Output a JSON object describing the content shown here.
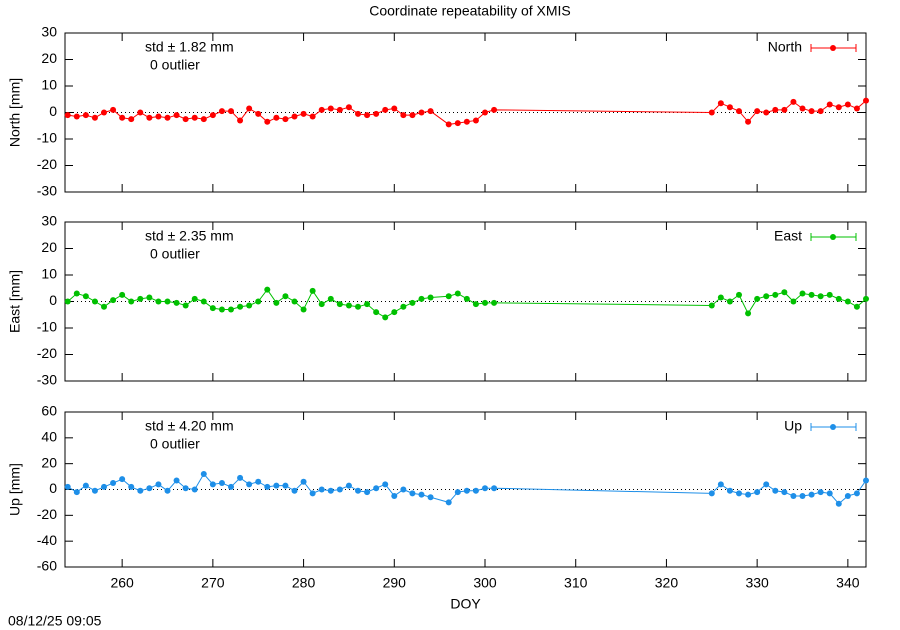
{
  "title": "Coordinate repeatability of XMIS",
  "timestamp": "08/12/25 09:05",
  "chart_data": [
    {
      "type": "line",
      "ylabel": "North [mm]",
      "annotations": [
        "std ± 1.82 mm",
        "0 outlier"
      ],
      "x": [
        254,
        255,
        256,
        257,
        258,
        259,
        260,
        261,
        262,
        263,
        264,
        265,
        266,
        267,
        268,
        269,
        270,
        271,
        272,
        273,
        274,
        275,
        276,
        277,
        278,
        279,
        280,
        281,
        282,
        283,
        284,
        285,
        286,
        287,
        288,
        289,
        290,
        291,
        292,
        293,
        294,
        296,
        297,
        298,
        299,
        300,
        301,
        325,
        326,
        327,
        328,
        329,
        330,
        331,
        332,
        333,
        334,
        335,
        336,
        337,
        338,
        339,
        340,
        341,
        342
      ],
      "series": [
        {
          "name": "North",
          "color": "#ff0000",
          "values": [
            -1,
            -1.5,
            -1,
            -2,
            0,
            1,
            -2,
            -2.5,
            0,
            -2,
            -1.5,
            -2,
            -1,
            -2.5,
            -2,
            -2.5,
            -1,
            0.5,
            0.5,
            -3,
            1.5,
            -0.5,
            -3.5,
            -2,
            -2.5,
            -1.5,
            -0.5,
            -1.5,
            1,
            1.5,
            1,
            2,
            -0.5,
            -1,
            -0.5,
            1,
            1.5,
            -1,
            -1,
            0,
            0.5,
            -4.5,
            -4,
            -3.5,
            -3,
            0,
            1,
            0,
            3.5,
            2,
            0.5,
            -3.5,
            0.5,
            0,
            1,
            1,
            4,
            1.5,
            0.5,
            0.5,
            3,
            2,
            3,
            1.5,
            4.5
          ]
        }
      ],
      "xlim": [
        253.7,
        342
      ],
      "xticks": [
        260,
        270,
        280,
        290,
        300,
        310,
        320,
        330,
        340
      ],
      "ylim": [
        -30,
        30
      ],
      "yticks": [
        -30,
        -20,
        -10,
        0,
        10,
        20,
        30
      ],
      "zeroline": true
    },
    {
      "type": "line",
      "ylabel": "East [mm]",
      "annotations": [
        "std ± 2.35 mm",
        "0 outlier"
      ],
      "x": [
        254,
        255,
        256,
        257,
        258,
        259,
        260,
        261,
        262,
        263,
        264,
        265,
        266,
        267,
        268,
        269,
        270,
        271,
        272,
        273,
        274,
        275,
        276,
        277,
        278,
        279,
        280,
        281,
        282,
        283,
        284,
        285,
        286,
        287,
        288,
        289,
        290,
        291,
        292,
        293,
        294,
        296,
        297,
        298,
        299,
        300,
        301,
        325,
        326,
        327,
        328,
        329,
        330,
        331,
        332,
        333,
        334,
        335,
        336,
        337,
        338,
        339,
        340,
        341,
        342
      ],
      "series": [
        {
          "name": "East",
          "color": "#00c000",
          "values": [
            0,
            3,
            2,
            0,
            -2,
            0.5,
            2.5,
            0,
            1,
            1.5,
            0,
            0,
            -0.5,
            -1.5,
            1,
            0,
            -2.5,
            -3,
            -3,
            -2,
            -1.5,
            0,
            4.5,
            -0.5,
            2,
            0,
            -3,
            4,
            -1,
            1,
            -1,
            -1.5,
            -2,
            -1,
            -4,
            -6,
            -4,
            -2,
            -0.5,
            1,
            1.5,
            2,
            3,
            1,
            -1,
            -0.5,
            -0.5,
            -1.5,
            1.5,
            0,
            2.5,
            -4.5,
            1,
            2,
            2.5,
            3.5,
            0,
            3,
            2.5,
            2,
            2.5,
            1,
            0,
            -2,
            1
          ]
        }
      ],
      "xlim": [
        253.7,
        342
      ],
      "xticks": [
        260,
        270,
        280,
        290,
        300,
        310,
        320,
        330,
        340
      ],
      "ylim": [
        -30,
        30
      ],
      "yticks": [
        -30,
        -20,
        -10,
        0,
        10,
        20,
        30
      ],
      "zeroline": true
    },
    {
      "type": "line",
      "ylabel": "Up [mm]",
      "xlabel": "DOY",
      "annotations": [
        "std ± 4.20 mm",
        "0 outlier"
      ],
      "x": [
        254,
        255,
        256,
        257,
        258,
        259,
        260,
        261,
        262,
        263,
        264,
        265,
        266,
        267,
        268,
        269,
        270,
        271,
        272,
        273,
        274,
        275,
        276,
        277,
        278,
        279,
        280,
        281,
        282,
        283,
        284,
        285,
        286,
        287,
        288,
        289,
        290,
        291,
        292,
        293,
        294,
        296,
        297,
        298,
        299,
        300,
        301,
        325,
        326,
        327,
        328,
        329,
        330,
        331,
        332,
        333,
        334,
        335,
        336,
        337,
        338,
        339,
        340,
        341,
        342
      ],
      "series": [
        {
          "name": "Up",
          "color": "#1e8fe8",
          "values": [
            2,
            -2,
            3,
            -1,
            2,
            5,
            8,
            2,
            -1,
            1,
            4,
            -1,
            7,
            1,
            0,
            12,
            4,
            5,
            2,
            9,
            4,
            6,
            2,
            3,
            3,
            -1,
            6,
            -3,
            0,
            -1,
            0,
            3,
            -1,
            -2,
            1,
            4,
            -5,
            0,
            -3,
            -4,
            -6,
            -10,
            -2,
            -1,
            -1,
            1,
            1,
            -3,
            4,
            -1,
            -3,
            -4,
            -2,
            4,
            -1,
            -2,
            -5,
            -5,
            -4,
            -2,
            -3,
            -11,
            -5,
            -3,
            7
          ]
        }
      ],
      "xlim": [
        253.7,
        342
      ],
      "xticks": [
        260,
        270,
        280,
        290,
        300,
        310,
        320,
        330,
        340
      ],
      "ylim": [
        -60,
        60
      ],
      "yticks": [
        -60,
        -40,
        -20,
        0,
        20,
        40,
        60
      ],
      "zeroline": true
    }
  ]
}
